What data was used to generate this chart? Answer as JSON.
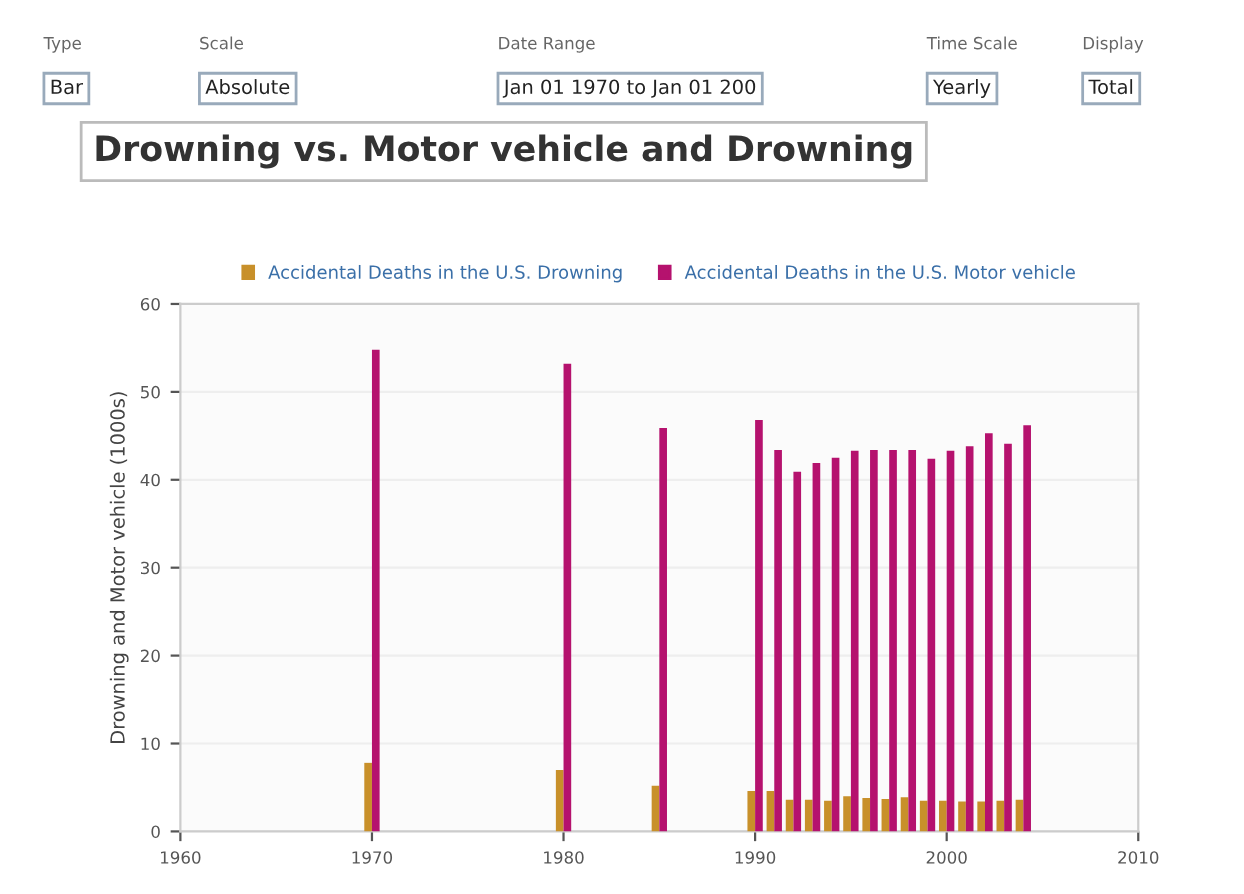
{
  "chart_data": {
    "type": "bar",
    "title": "Drowning vs. Motor vehicle and Drowning",
    "annotations": [
      "Type",
      "Bar",
      "Scale",
      "Absolute",
      "Date Range",
      "Jan 01 1970 to Jan 01 200",
      "Time Scale",
      "Yearly",
      "Display",
      "Total"
    ],
    "ylabel": "Drowning and Motor vehicle (1000s)",
    "x": [
      1970,
      1980,
      1985,
      1990,
      1991,
      1992,
      1993,
      1994,
      1995,
      1996,
      1997,
      1998,
      1999,
      2000,
      2001,
      2002,
      2003,
      2004
    ],
    "series": [
      {
        "name": "Accidental Deaths in the U.S. Drowning",
        "color": "#c8902a",
        "values": [
          7.8,
          7.0,
          5.2,
          4.6,
          4.6,
          3.6,
          3.6,
          3.5,
          4.0,
          3.8,
          3.7,
          3.9,
          3.5,
          3.5,
          3.4,
          3.4,
          3.5,
          3.6
        ]
      },
      {
        "name": "Accidental Deaths in the U.S. Motor vehicle",
        "color": "#b5126e",
        "values": [
          54.8,
          53.2,
          45.9,
          46.8,
          43.4,
          40.9,
          41.9,
          42.5,
          43.3,
          43.4,
          43.4,
          43.4,
          42.4,
          43.3,
          43.8,
          45.3,
          44.1,
          46.2
        ]
      }
    ],
    "xlim": [
      1960,
      2010
    ],
    "xticks": [
      1960,
      1970,
      1980,
      1990,
      2000,
      2010
    ],
    "ylim": [
      0,
      60
    ],
    "yticks": [
      0,
      10,
      20,
      30,
      40,
      50,
      60
    ],
    "grid": "y",
    "legend": "top"
  }
}
